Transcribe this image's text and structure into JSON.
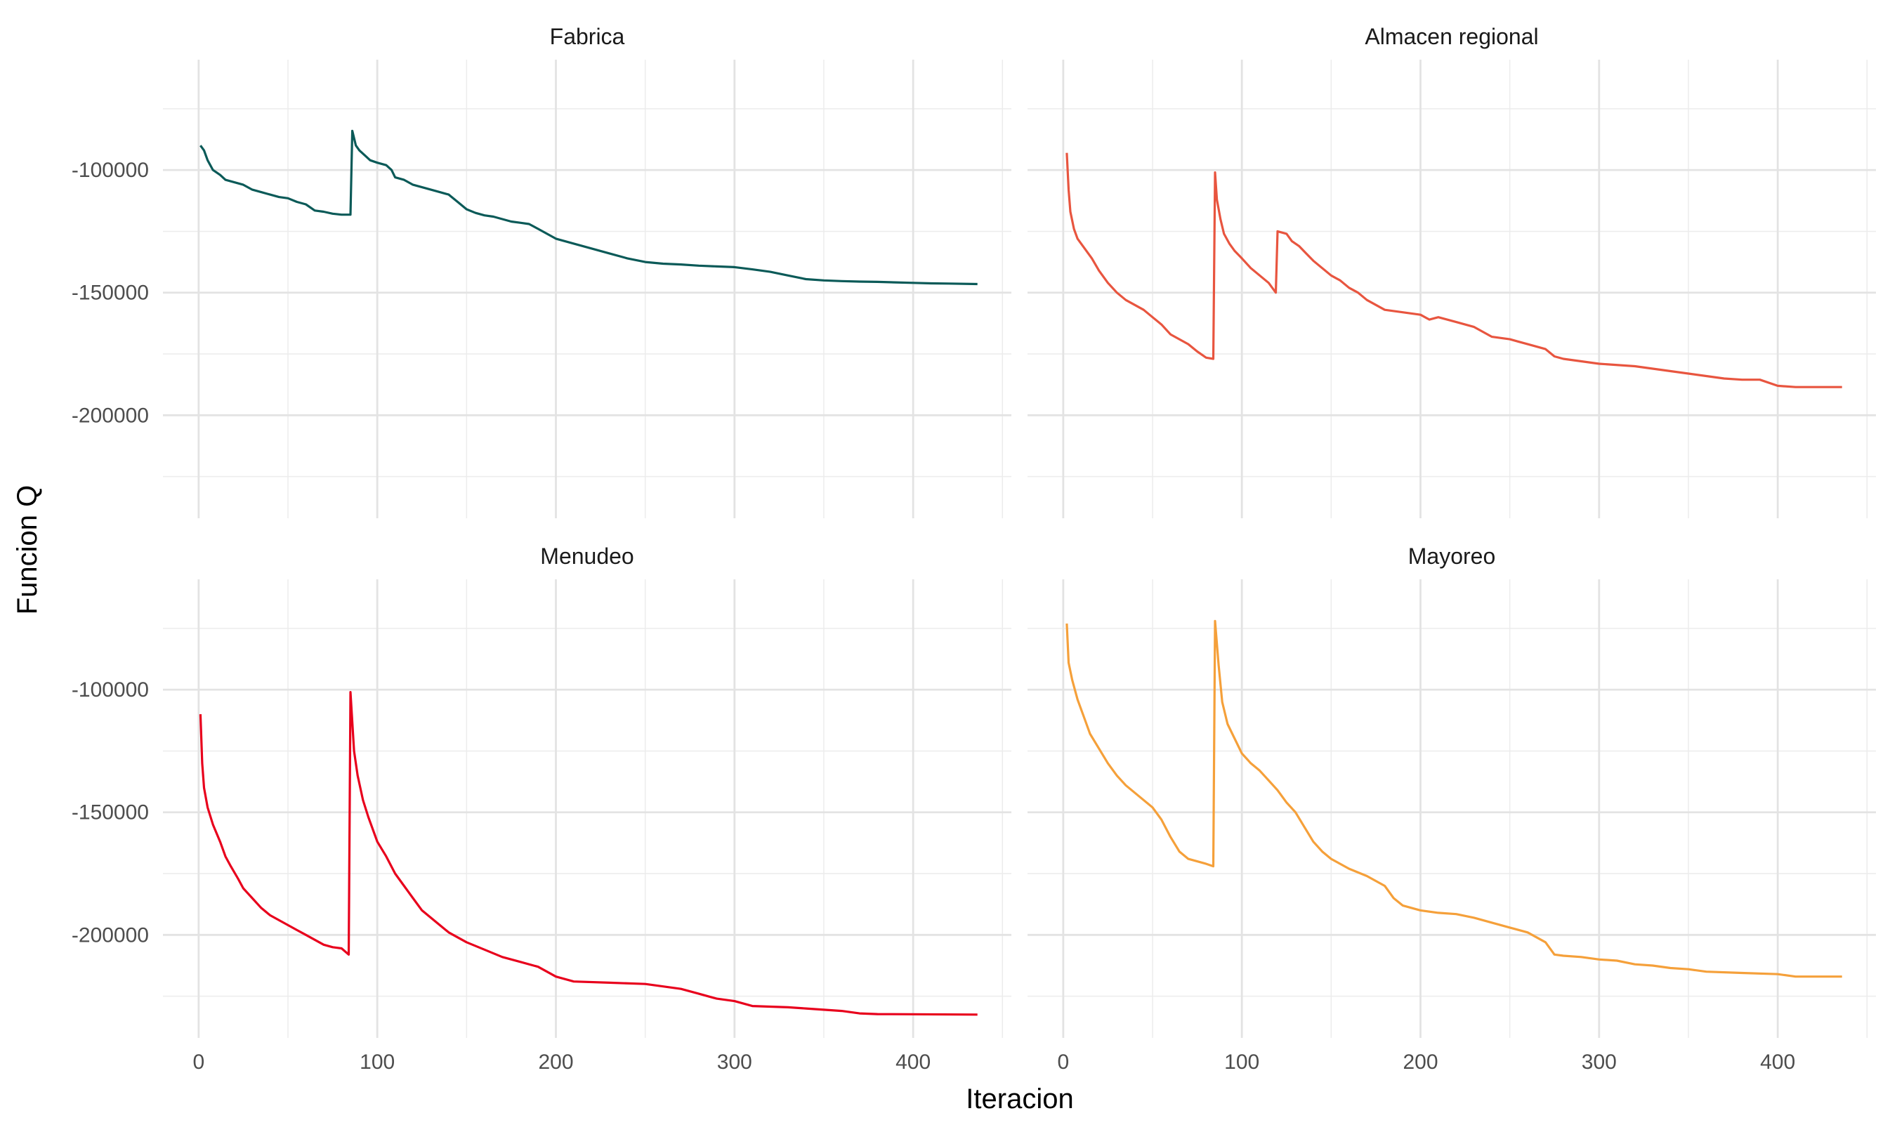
{
  "chart_data": {
    "type": "line",
    "layout": "facet-grid-2x2",
    "xlabel": "Iteracion",
    "ylabel": "Funcion Q",
    "xlim": [
      -20,
      455
    ],
    "ylim": [
      -242000,
      -55000
    ],
    "x_ticks": [
      0,
      100,
      200,
      300,
      400
    ],
    "y_ticks": [
      -100000,
      -150000,
      -200000
    ],
    "grid": true,
    "legend": "none",
    "panels": [
      {
        "title": "Fabrica",
        "color": "#0b5a58",
        "series": [
          [
            1,
            -90000
          ],
          [
            3,
            -92000
          ],
          [
            5,
            -96000
          ],
          [
            8,
            -100000
          ],
          [
            12,
            -102000
          ],
          [
            15,
            -104000
          ],
          [
            20,
            -105000
          ],
          [
            25,
            -106000
          ],
          [
            30,
            -108000
          ],
          [
            35,
            -109000
          ],
          [
            40,
            -110000
          ],
          [
            45,
            -111000
          ],
          [
            50,
            -111500
          ],
          [
            55,
            -113000
          ],
          [
            60,
            -114000
          ],
          [
            65,
            -116500
          ],
          [
            70,
            -117000
          ],
          [
            75,
            -117800
          ],
          [
            80,
            -118200
          ],
          [
            85,
            -118200
          ],
          [
            86,
            -84000
          ],
          [
            88,
            -90000
          ],
          [
            90,
            -92000
          ],
          [
            93,
            -94000
          ],
          [
            96,
            -96000
          ],
          [
            100,
            -97000
          ],
          [
            105,
            -98000
          ],
          [
            108,
            -100000
          ],
          [
            110,
            -103000
          ],
          [
            115,
            -104000
          ],
          [
            120,
            -106000
          ],
          [
            125,
            -107000
          ],
          [
            130,
            -108000
          ],
          [
            135,
            -109000
          ],
          [
            140,
            -110000
          ],
          [
            145,
            -113000
          ],
          [
            150,
            -116000
          ],
          [
            155,
            -117500
          ],
          [
            160,
            -118500
          ],
          [
            165,
            -119000
          ],
          [
            170,
            -120000
          ],
          [
            175,
            -121000
          ],
          [
            180,
            -121500
          ],
          [
            185,
            -122000
          ],
          [
            190,
            -124000
          ],
          [
            195,
            -126000
          ],
          [
            200,
            -128000
          ],
          [
            205,
            -129000
          ],
          [
            210,
            -130000
          ],
          [
            220,
            -132000
          ],
          [
            230,
            -134000
          ],
          [
            240,
            -136000
          ],
          [
            250,
            -137500
          ],
          [
            260,
            -138200
          ],
          [
            270,
            -138500
          ],
          [
            280,
            -139000
          ],
          [
            290,
            -139300
          ],
          [
            300,
            -139600
          ],
          [
            310,
            -140500
          ],
          [
            320,
            -141500
          ],
          [
            330,
            -143000
          ],
          [
            340,
            -144500
          ],
          [
            350,
            -145000
          ],
          [
            360,
            -145300
          ],
          [
            370,
            -145500
          ],
          [
            380,
            -145600
          ],
          [
            390,
            -145800
          ],
          [
            400,
            -146000
          ],
          [
            410,
            -146200
          ],
          [
            420,
            -146300
          ],
          [
            436,
            -146500
          ]
        ]
      },
      {
        "title": "Almacen regional",
        "color": "#e8553f",
        "series": [
          [
            2,
            -93000
          ],
          [
            3,
            -108000
          ],
          [
            4,
            -117000
          ],
          [
            6,
            -124000
          ],
          [
            8,
            -128000
          ],
          [
            12,
            -132000
          ],
          [
            16,
            -136000
          ],
          [
            20,
            -141000
          ],
          [
            25,
            -146000
          ],
          [
            30,
            -150000
          ],
          [
            35,
            -153000
          ],
          [
            40,
            -155000
          ],
          [
            45,
            -157000
          ],
          [
            50,
            -160000
          ],
          [
            55,
            -163000
          ],
          [
            60,
            -167000
          ],
          [
            65,
            -169000
          ],
          [
            70,
            -171000
          ],
          [
            75,
            -174000
          ],
          [
            80,
            -176500
          ],
          [
            84,
            -177000
          ],
          [
            85,
            -101000
          ],
          [
            86,
            -112000
          ],
          [
            88,
            -120000
          ],
          [
            90,
            -126000
          ],
          [
            93,
            -130000
          ],
          [
            96,
            -133000
          ],
          [
            100,
            -136000
          ],
          [
            105,
            -140000
          ],
          [
            110,
            -143000
          ],
          [
            115,
            -146000
          ],
          [
            119,
            -150000
          ],
          [
            120,
            -125000
          ],
          [
            125,
            -126000
          ],
          [
            128,
            -129000
          ],
          [
            132,
            -131000
          ],
          [
            136,
            -134000
          ],
          [
            140,
            -137000
          ],
          [
            145,
            -140000
          ],
          [
            150,
            -143000
          ],
          [
            155,
            -145000
          ],
          [
            160,
            -148000
          ],
          [
            165,
            -150000
          ],
          [
            170,
            -153000
          ],
          [
            175,
            -155000
          ],
          [
            180,
            -157000
          ],
          [
            190,
            -158000
          ],
          [
            200,
            -159000
          ],
          [
            205,
            -161000
          ],
          [
            210,
            -160000
          ],
          [
            220,
            -162000
          ],
          [
            230,
            -164000
          ],
          [
            240,
            -168000
          ],
          [
            250,
            -169000
          ],
          [
            260,
            -171000
          ],
          [
            270,
            -173000
          ],
          [
            275,
            -176000
          ],
          [
            280,
            -177000
          ],
          [
            290,
            -178000
          ],
          [
            300,
            -179000
          ],
          [
            320,
            -180000
          ],
          [
            340,
            -182000
          ],
          [
            350,
            -183000
          ],
          [
            360,
            -184000
          ],
          [
            370,
            -185000
          ],
          [
            380,
            -185500
          ],
          [
            390,
            -185500
          ],
          [
            400,
            -188000
          ],
          [
            410,
            -188500
          ],
          [
            436,
            -188500
          ]
        ]
      },
      {
        "title": "Menudeo",
        "color": "#e8001c",
        "series": [
          [
            1,
            -110000
          ],
          [
            2,
            -130000
          ],
          [
            3,
            -140000
          ],
          [
            5,
            -148000
          ],
          [
            8,
            -155000
          ],
          [
            12,
            -162000
          ],
          [
            15,
            -168000
          ],
          [
            18,
            -172000
          ],
          [
            22,
            -177000
          ],
          [
            25,
            -181000
          ],
          [
            30,
            -185000
          ],
          [
            35,
            -189000
          ],
          [
            40,
            -192000
          ],
          [
            45,
            -194000
          ],
          [
            50,
            -196000
          ],
          [
            55,
            -198000
          ],
          [
            60,
            -200000
          ],
          [
            65,
            -202000
          ],
          [
            70,
            -204000
          ],
          [
            75,
            -205000
          ],
          [
            80,
            -205500
          ],
          [
            84,
            -208000
          ],
          [
            85,
            -101000
          ],
          [
            87,
            -125000
          ],
          [
            89,
            -135000
          ],
          [
            92,
            -145000
          ],
          [
            95,
            -152000
          ],
          [
            100,
            -162000
          ],
          [
            105,
            -168000
          ],
          [
            110,
            -175000
          ],
          [
            115,
            -180000
          ],
          [
            120,
            -185000
          ],
          [
            125,
            -190000
          ],
          [
            130,
            -193000
          ],
          [
            135,
            -196000
          ],
          [
            140,
            -199000
          ],
          [
            145,
            -201000
          ],
          [
            150,
            -203000
          ],
          [
            160,
            -206000
          ],
          [
            170,
            -209000
          ],
          [
            180,
            -211000
          ],
          [
            190,
            -213000
          ],
          [
            200,
            -217000
          ],
          [
            210,
            -219000
          ],
          [
            230,
            -219500
          ],
          [
            250,
            -220000
          ],
          [
            270,
            -222000
          ],
          [
            280,
            -224000
          ],
          [
            290,
            -226000
          ],
          [
            300,
            -227000
          ],
          [
            310,
            -229000
          ],
          [
            330,
            -229500
          ],
          [
            340,
            -230000
          ],
          [
            360,
            -231000
          ],
          [
            370,
            -232000
          ],
          [
            380,
            -232300
          ],
          [
            436,
            -232500
          ]
        ]
      },
      {
        "title": "Mayoreo",
        "color": "#f5a03a",
        "series": [
          [
            2,
            -73000
          ],
          [
            3,
            -89000
          ],
          [
            5,
            -96000
          ],
          [
            8,
            -104000
          ],
          [
            12,
            -112000
          ],
          [
            15,
            -118000
          ],
          [
            20,
            -124000
          ],
          [
            25,
            -130000
          ],
          [
            30,
            -135000
          ],
          [
            35,
            -139000
          ],
          [
            40,
            -142000
          ],
          [
            45,
            -145000
          ],
          [
            50,
            -148000
          ],
          [
            55,
            -153000
          ],
          [
            60,
            -160000
          ],
          [
            65,
            -166000
          ],
          [
            70,
            -169000
          ],
          [
            75,
            -170000
          ],
          [
            80,
            -171000
          ],
          [
            84,
            -172000
          ],
          [
            85,
            -72000
          ],
          [
            87,
            -90000
          ],
          [
            89,
            -105000
          ],
          [
            92,
            -114000
          ],
          [
            96,
            -120000
          ],
          [
            100,
            -126000
          ],
          [
            105,
            -130000
          ],
          [
            110,
            -133000
          ],
          [
            115,
            -137000
          ],
          [
            120,
            -141000
          ],
          [
            125,
            -146000
          ],
          [
            130,
            -150000
          ],
          [
            135,
            -156000
          ],
          [
            140,
            -162000
          ],
          [
            145,
            -166000
          ],
          [
            150,
            -169000
          ],
          [
            155,
            -171000
          ],
          [
            160,
            -173000
          ],
          [
            170,
            -176000
          ],
          [
            180,
            -180000
          ],
          [
            185,
            -185000
          ],
          [
            190,
            -188000
          ],
          [
            200,
            -190000
          ],
          [
            210,
            -191000
          ],
          [
            220,
            -191500
          ],
          [
            230,
            -193000
          ],
          [
            240,
            -195000
          ],
          [
            250,
            -197000
          ],
          [
            260,
            -199000
          ],
          [
            270,
            -203000
          ],
          [
            275,
            -208000
          ],
          [
            280,
            -208500
          ],
          [
            290,
            -209000
          ],
          [
            300,
            -210000
          ],
          [
            310,
            -210500
          ],
          [
            320,
            -212000
          ],
          [
            330,
            -212500
          ],
          [
            340,
            -213500
          ],
          [
            350,
            -214000
          ],
          [
            360,
            -215000
          ],
          [
            380,
            -215500
          ],
          [
            400,
            -216000
          ],
          [
            410,
            -217000
          ],
          [
            436,
            -217000
          ]
        ]
      }
    ]
  }
}
